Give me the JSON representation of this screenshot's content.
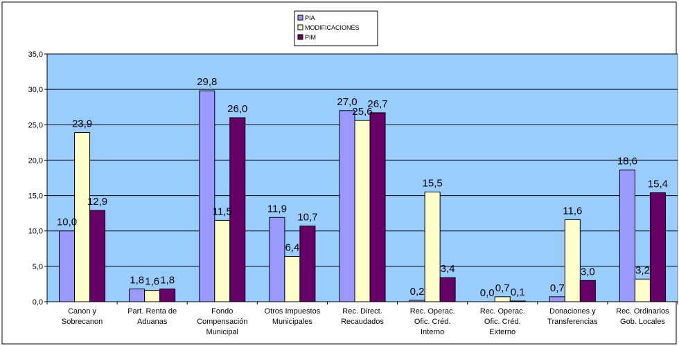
{
  "chart_data": {
    "type": "bar",
    "categories": [
      [
        "Canon y",
        "Sobrecanon"
      ],
      [
        "Part. Renta de",
        "Aduanas"
      ],
      [
        "Fondo",
        "Compensación",
        "Municipal"
      ],
      [
        "Otros Impuestos",
        "Municipales"
      ],
      [
        "Rec. Direct.",
        "Recaudados"
      ],
      [
        "Rec. Operac.",
        "Ofic. Créd.",
        "Interno"
      ],
      [
        "Rec. Operac.",
        "Ofic. Créd.",
        "Externo"
      ],
      [
        "Donaciones y",
        "Transferencias"
      ],
      [
        "Rec. Ordinarios",
        "Gob. Locales"
      ]
    ],
    "series": [
      {
        "name": "PIA",
        "color": "#9999ff",
        "values": [
          10.0,
          1.8,
          29.8,
          11.9,
          27.0,
          0.2,
          0.0,
          0.7,
          18.6
        ],
        "labels": [
          "10,0",
          "1,8",
          "29,8",
          "11,9",
          "27,0",
          "0,2",
          "0,0",
          "0,7",
          "18,6"
        ]
      },
      {
        "name": "MODIFICACIONES",
        "color": "#ffffcc",
        "values": [
          23.9,
          1.6,
          11.5,
          6.4,
          25.6,
          15.5,
          0.7,
          11.6,
          3.2
        ],
        "labels": [
          "23,9",
          "1,6",
          "11,5",
          "6,4",
          "25,6",
          "15,5",
          "0,7",
          "11,6",
          "3,2"
        ]
      },
      {
        "name": "PIM",
        "color": "#660066",
        "values": [
          12.9,
          1.8,
          26.0,
          10.7,
          26.7,
          3.4,
          0.1,
          3.0,
          15.4
        ],
        "labels": [
          "12,9",
          "1,8",
          "26,0",
          "10,7",
          "26,7",
          "3,4",
          "0,1",
          "3,0",
          "15,4"
        ]
      }
    ],
    "yticks": [
      "0,0",
      "5,0",
      "10,0",
      "15,0",
      "20,0",
      "25,0",
      "30,0",
      "35,0"
    ],
    "ylim": [
      0,
      35
    ],
    "plot_background": "#99ccff",
    "grid": true,
    "legend_position": "top-center"
  }
}
